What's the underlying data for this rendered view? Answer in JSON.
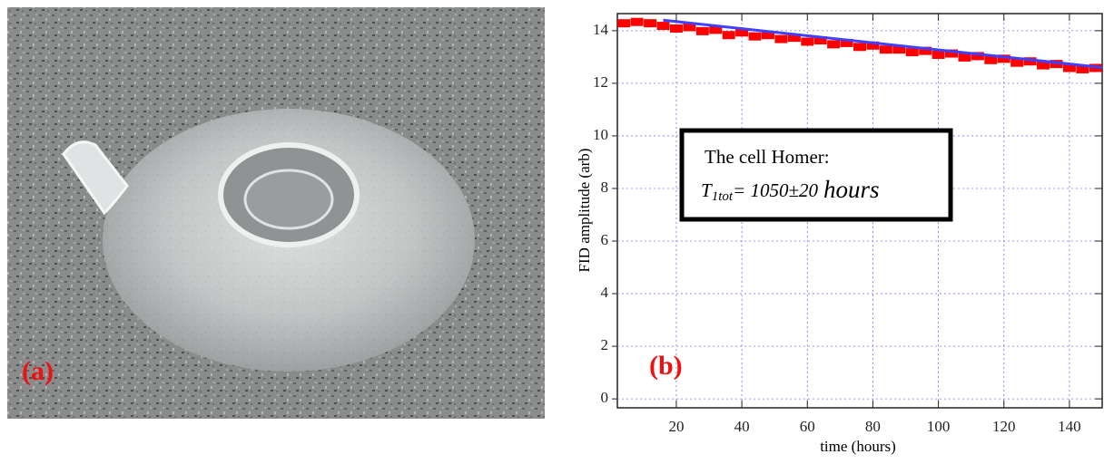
{
  "photo": {
    "label": "(a)"
  },
  "chart_data": {
    "type": "scatter",
    "panel_label": "(b)",
    "xlabel": "time (hours)",
    "ylabel": "FID amplitude (arb)",
    "annotation": {
      "line1": "The cell Homer:",
      "line2": [
        "T",
        "1tot",
        "= 1050±20",
        "hours"
      ]
    },
    "xlim": [
      2,
      150
    ],
    "ylim": [
      -0.34,
      14.65
    ],
    "xticks": [
      20,
      40,
      60,
      80,
      100,
      120,
      140
    ],
    "yticks": [
      0,
      2,
      4,
      6,
      8,
      10,
      12,
      14
    ],
    "grid": true,
    "series": [
      {
        "style": "markers",
        "color": "#ff0000",
        "x": [
          4,
          8,
          12,
          16,
          20,
          24,
          28,
          32,
          36,
          40,
          44,
          48,
          52,
          56,
          60,
          64,
          68,
          72,
          76,
          80,
          84,
          88,
          92,
          96,
          100,
          104,
          108,
          112,
          116,
          120,
          124,
          128,
          132,
          136,
          140,
          144,
          148
        ],
        "values": [
          14.3,
          14.35,
          14.3,
          14.2,
          14.1,
          14.15,
          14.0,
          14.05,
          13.85,
          13.95,
          13.8,
          13.85,
          13.7,
          13.75,
          13.6,
          13.65,
          13.5,
          13.55,
          13.4,
          13.45,
          13.3,
          13.3,
          13.2,
          13.25,
          13.1,
          13.15,
          13.0,
          13.05,
          12.9,
          12.95,
          12.8,
          12.85,
          12.7,
          12.75,
          12.6,
          12.55,
          12.6
        ]
      },
      {
        "style": "line",
        "color": "#4040ff",
        "x": [
          16,
          150
        ],
        "values": [
          14.4,
          12.6
        ]
      }
    ]
  }
}
